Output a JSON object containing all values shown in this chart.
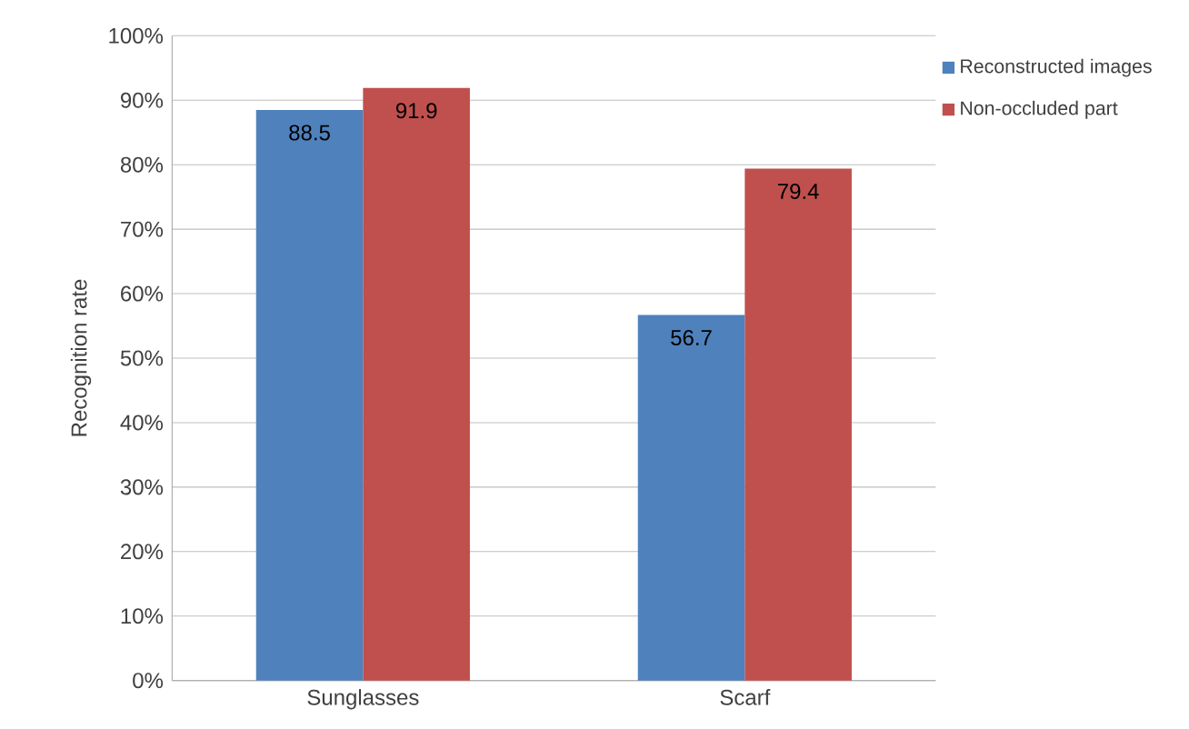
{
  "chart_data": {
    "type": "bar",
    "ylabel": "Recognition rate",
    "categories": [
      "Sunglasses",
      "Scarf"
    ],
    "series": [
      {
        "name": "Reconstructed images",
        "color": "#4f81bd",
        "values": [
          88.5,
          56.7
        ]
      },
      {
        "name": "Non-occluded part",
        "color": "#c0504d",
        "values": [
          91.9,
          79.4
        ]
      }
    ],
    "ylim": [
      0,
      100
    ],
    "yticks": [
      {
        "value": 0,
        "label": "0%"
      },
      {
        "value": 10,
        "label": "10%"
      },
      {
        "value": 20,
        "label": "20%"
      },
      {
        "value": 30,
        "label": "30%"
      },
      {
        "value": 40,
        "label": "40%"
      },
      {
        "value": 50,
        "label": "50%"
      },
      {
        "value": 60,
        "label": "60%"
      },
      {
        "value": 70,
        "label": "70%"
      },
      {
        "value": 80,
        "label": "80%"
      },
      {
        "value": 90,
        "label": "90%"
      },
      {
        "value": 100,
        "label": "100%"
      }
    ],
    "grid": "y",
    "legend": "top right",
    "data_labels": true
  }
}
